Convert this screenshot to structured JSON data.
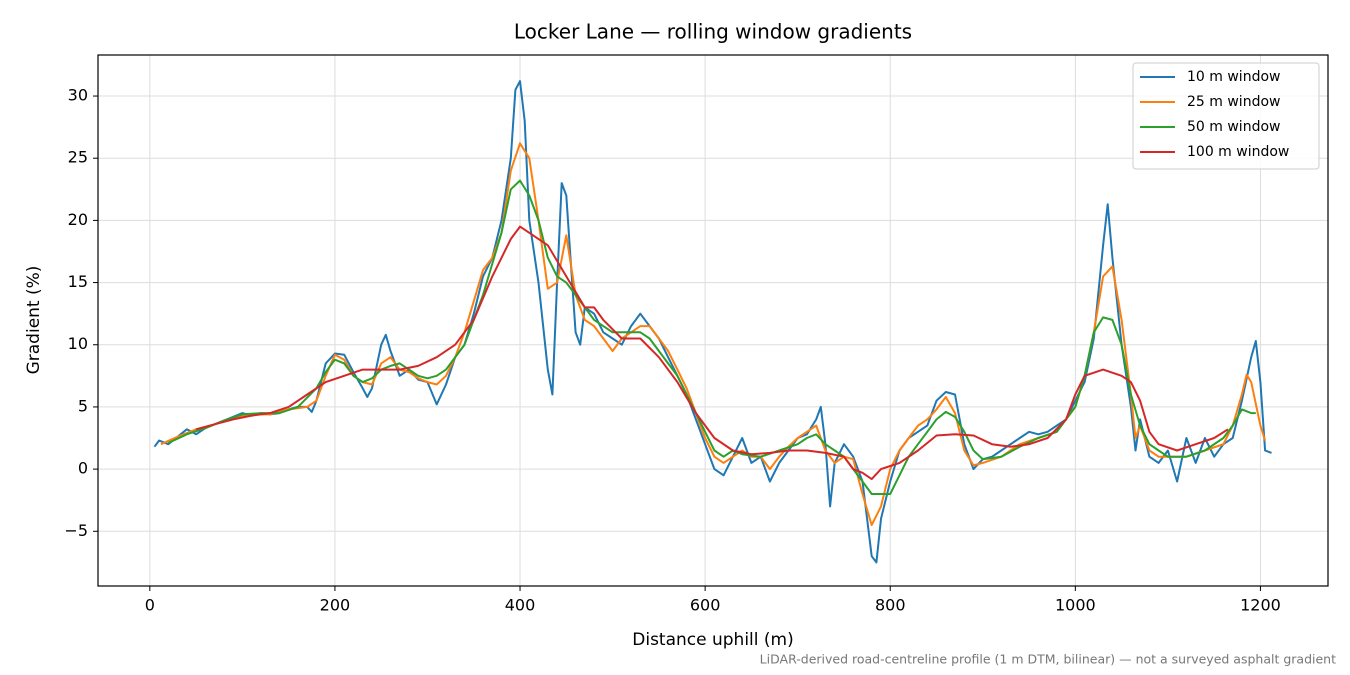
{
  "chart_data": {
    "type": "line",
    "title": "Locker Lane — rolling window gradients",
    "x_label": "Distance uphill (m)",
    "y_label": "Gradient (%)",
    "footnote": "LiDAR-derived road-centreline profile (1 m DTM, bilinear) — not a surveyed asphalt gradient",
    "xlim": [
      -56,
      1273
    ],
    "ylim": [
      -9.4,
      33.3
    ],
    "xticks": [
      0,
      200,
      400,
      600,
      800,
      1000,
      1200
    ],
    "yticks": [
      {
        "value": -5,
        "label": "−5"
      },
      0,
      5,
      10,
      15,
      20,
      25,
      30
    ],
    "grid": true,
    "legend": "upper right",
    "series": [
      {
        "name": "10 m window",
        "color": "#1f77b4",
        "x": [
          5,
          10,
          20,
          30,
          40,
          50,
          60,
          70,
          80,
          90,
          100,
          110,
          120,
          130,
          140,
          150,
          160,
          170,
          175,
          180,
          190,
          200,
          210,
          220,
          230,
          235,
          240,
          250,
          255,
          260,
          270,
          280,
          290,
          300,
          310,
          320,
          330,
          340,
          350,
          360,
          370,
          380,
          390,
          395,
          400,
          405,
          410,
          420,
          430,
          435,
          440,
          445,
          450,
          455,
          460,
          465,
          470,
          480,
          490,
          500,
          510,
          520,
          530,
          540,
          550,
          560,
          570,
          580,
          590,
          600,
          610,
          620,
          630,
          640,
          650,
          660,
          670,
          680,
          690,
          700,
          710,
          720,
          725,
          730,
          735,
          740,
          750,
          760,
          770,
          780,
          785,
          790,
          800,
          810,
          820,
          830,
          840,
          850,
          860,
          870,
          880,
          890,
          900,
          910,
          920,
          930,
          940,
          950,
          960,
          970,
          980,
          990,
          1000,
          1010,
          1020,
          1030,
          1035,
          1040,
          1050,
          1060,
          1065,
          1070,
          1080,
          1090,
          1100,
          1110,
          1120,
          1130,
          1140,
          1150,
          1160,
          1170,
          1180,
          1190,
          1195,
          1200,
          1205,
          1212
        ],
        "values": [
          1.8,
          2.3,
          2.0,
          2.6,
          3.2,
          2.8,
          3.3,
          3.6,
          3.9,
          4.2,
          4.5,
          4.3,
          4.5,
          4.4,
          4.5,
          4.8,
          5.0,
          5.0,
          4.6,
          5.5,
          8.5,
          9.3,
          9.2,
          7.8,
          6.5,
          5.8,
          6.5,
          10.0,
          10.8,
          9.5,
          7.5,
          8.0,
          7.2,
          7.0,
          5.2,
          6.8,
          9.0,
          10.0,
          12.5,
          15.5,
          17.0,
          20.0,
          25.0,
          30.5,
          31.2,
          28.0,
          20.0,
          15.0,
          8.0,
          6.0,
          15.0,
          23.0,
          22.0,
          16.5,
          11.0,
          10.0,
          13.0,
          12.5,
          11.0,
          10.5,
          10.0,
          11.5,
          12.5,
          11.5,
          10.5,
          9.0,
          7.5,
          6.0,
          4.0,
          2.0,
          0.0,
          -0.5,
          1.0,
          2.5,
          0.5,
          1.0,
          -1.0,
          0.5,
          1.5,
          2.5,
          2.8,
          4.0,
          5.0,
          2.0,
          -3.0,
          0.5,
          2.0,
          1.0,
          -1.0,
          -7.0,
          -7.5,
          -4.0,
          -1.0,
          1.5,
          2.5,
          3.0,
          3.5,
          5.5,
          6.2,
          6.0,
          2.0,
          0.0,
          0.8,
          1.0,
          1.5,
          2.0,
          2.5,
          3.0,
          2.8,
          3.0,
          3.5,
          4.0,
          5.5,
          7.0,
          10.5,
          18.0,
          21.3,
          17.0,
          10.0,
          5.0,
          1.5,
          4.0,
          1.0,
          0.5,
          1.5,
          -1.0,
          2.5,
          0.5,
          2.5,
          1.0,
          2.0,
          2.5,
          5.5,
          9.0,
          10.3,
          7.0,
          1.5,
          1.3
        ]
      },
      {
        "name": "25 m window",
        "color": "#ff7f0e",
        "x": [
          12,
          30,
          50,
          70,
          90,
          110,
          130,
          150,
          170,
          180,
          190,
          200,
          210,
          220,
          230,
          240,
          250,
          260,
          270,
          280,
          290,
          300,
          310,
          320,
          330,
          340,
          350,
          360,
          370,
          380,
          390,
          400,
          410,
          420,
          430,
          440,
          450,
          460,
          470,
          480,
          490,
          500,
          510,
          520,
          530,
          540,
          550,
          560,
          570,
          580,
          590,
          600,
          610,
          620,
          630,
          640,
          650,
          660,
          670,
          680,
          690,
          700,
          710,
          720,
          730,
          740,
          750,
          760,
          770,
          780,
          790,
          800,
          810,
          820,
          830,
          840,
          850,
          860,
          870,
          880,
          890,
          900,
          920,
          940,
          960,
          980,
          1000,
          1010,
          1020,
          1030,
          1040,
          1050,
          1060,
          1065,
          1070,
          1080,
          1090,
          1100,
          1120,
          1140,
          1160,
          1170,
          1180,
          1185,
          1190,
          1200,
          1205
        ],
        "values": [
          2.0,
          2.6,
          3.2,
          3.6,
          4.1,
          4.4,
          4.4,
          4.8,
          5.0,
          5.5,
          7.5,
          9.2,
          8.8,
          7.5,
          7.0,
          6.8,
          8.5,
          9.0,
          8.0,
          7.8,
          7.3,
          7.0,
          6.8,
          7.5,
          9.0,
          11.0,
          13.5,
          16.0,
          17.0,
          19.0,
          24.0,
          26.2,
          25.0,
          20.0,
          14.5,
          15.0,
          18.8,
          14.0,
          12.0,
          11.5,
          10.5,
          9.5,
          10.5,
          11.0,
          11.5,
          11.5,
          10.5,
          9.5,
          8.0,
          6.5,
          4.5,
          2.5,
          1.0,
          0.5,
          1.0,
          1.5,
          1.0,
          1.0,
          0.0,
          1.0,
          1.8,
          2.5,
          3.0,
          3.5,
          1.5,
          0.5,
          1.0,
          0.8,
          -2.0,
          -4.5,
          -3.0,
          0.0,
          1.5,
          2.5,
          3.5,
          4.0,
          4.8,
          5.8,
          4.5,
          1.5,
          0.3,
          0.5,
          1.0,
          2.0,
          2.5,
          3.0,
          5.0,
          7.5,
          11.0,
          15.5,
          16.3,
          12.0,
          6.0,
          2.5,
          3.5,
          1.5,
          1.0,
          1.0,
          1.0,
          1.5,
          2.0,
          3.5,
          6.0,
          7.6,
          7.0,
          3.5,
          2.3
        ]
      },
      {
        "name": "50 m window",
        "color": "#2ca02c",
        "x": [
          20,
          40,
          60,
          80,
          100,
          120,
          140,
          160,
          180,
          190,
          200,
          210,
          220,
          230,
          240,
          250,
          260,
          270,
          280,
          290,
          300,
          310,
          320,
          340,
          360,
          380,
          390,
          400,
          410,
          420,
          430,
          440,
          450,
          460,
          470,
          480,
          490,
          500,
          510,
          520,
          530,
          540,
          550,
          560,
          570,
          580,
          590,
          600,
          610,
          620,
          630,
          640,
          660,
          680,
          700,
          710,
          720,
          730,
          740,
          750,
          760,
          770,
          780,
          800,
          810,
          820,
          830,
          840,
          850,
          860,
          870,
          880,
          890,
          900,
          920,
          940,
          960,
          980,
          1000,
          1010,
          1020,
          1030,
          1040,
          1050,
          1060,
          1070,
          1080,
          1090,
          1100,
          1120,
          1140,
          1160,
          1170,
          1180,
          1190,
          1195
        ],
        "values": [
          2.1,
          2.8,
          3.3,
          3.9,
          4.4,
          4.5,
          4.5,
          5.0,
          6.5,
          7.8,
          8.8,
          8.5,
          7.5,
          7.0,
          7.3,
          8.0,
          8.3,
          8.5,
          8.0,
          7.5,
          7.3,
          7.5,
          8.0,
          10.0,
          14.0,
          19.0,
          22.5,
          23.2,
          22.0,
          20.0,
          17.0,
          15.5,
          15.0,
          14.0,
          13.0,
          12.0,
          11.5,
          11.0,
          11.0,
          11.0,
          11.0,
          10.5,
          9.5,
          8.5,
          7.5,
          6.0,
          4.5,
          3.0,
          1.5,
          1.0,
          1.5,
          1.2,
          1.0,
          1.5,
          2.0,
          2.5,
          2.8,
          2.0,
          1.5,
          1.0,
          0.0,
          -1.0,
          -2.0,
          -2.0,
          -0.5,
          1.0,
          2.0,
          3.0,
          4.0,
          4.6,
          4.2,
          3.0,
          1.5,
          0.8,
          1.0,
          1.8,
          2.5,
          3.0,
          5.0,
          7.5,
          11.0,
          12.2,
          12.0,
          10.0,
          6.0,
          3.5,
          2.0,
          1.5,
          1.0,
          1.0,
          1.5,
          2.5,
          3.5,
          4.8,
          4.5,
          4.5
        ]
      },
      {
        "name": "100 m window",
        "color": "#d62728",
        "x": [
          50,
          70,
          90,
          110,
          130,
          150,
          170,
          190,
          210,
          230,
          250,
          270,
          290,
          310,
          330,
          350,
          370,
          390,
          400,
          410,
          430,
          450,
          470,
          480,
          490,
          510,
          530,
          550,
          570,
          590,
          610,
          630,
          650,
          670,
          690,
          710,
          730,
          750,
          760,
          770,
          780,
          790,
          810,
          830,
          850,
          870,
          890,
          910,
          930,
          950,
          970,
          990,
          1000,
          1010,
          1030,
          1050,
          1060,
          1070,
          1080,
          1090,
          1110,
          1130,
          1150,
          1165
        ],
        "values": [
          3.2,
          3.6,
          4.0,
          4.3,
          4.5,
          5.0,
          6.0,
          7.0,
          7.5,
          8.0,
          8.0,
          8.0,
          8.3,
          9.0,
          10.0,
          12.0,
          15.5,
          18.5,
          19.5,
          19.0,
          18.0,
          15.5,
          13.0,
          13.0,
          12.0,
          10.5,
          10.5,
          9.0,
          7.0,
          4.5,
          2.5,
          1.5,
          1.2,
          1.3,
          1.5,
          1.5,
          1.3,
          1.0,
          0.0,
          -0.3,
          -0.8,
          0.0,
          0.5,
          1.5,
          2.7,
          2.8,
          2.7,
          2.0,
          1.8,
          2.0,
          2.5,
          4.0,
          6.0,
          7.5,
          8.0,
          7.5,
          7.0,
          5.5,
          3.0,
          2.0,
          1.5,
          2.0,
          2.5,
          3.2
        ]
      }
    ]
  }
}
